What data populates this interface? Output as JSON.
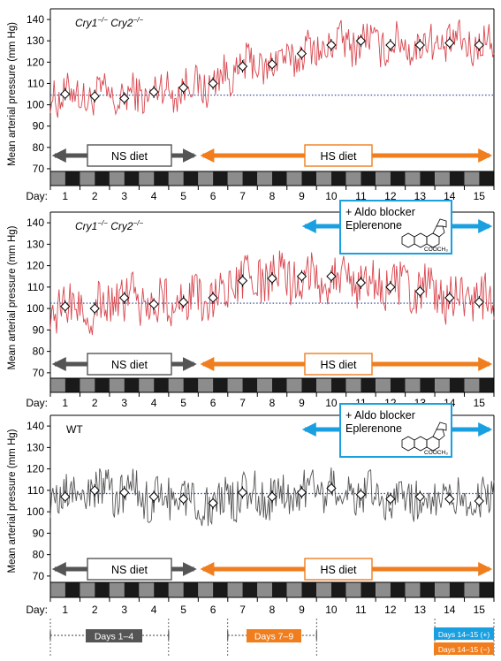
{
  "panels": [
    {
      "genotype_parts": [
        "Cry1",
        "−/−",
        " Cry2",
        "−/−"
      ],
      "ylabel": "Mean arterial pressure (mm Hg)",
      "yticks": [
        70,
        80,
        90,
        100,
        110,
        120,
        130,
        140
      ],
      "day_prefix": "Day:",
      "ns_label": "NS diet",
      "hs_label": "HS diet",
      "drug_box": null,
      "trace_color": "#d9474f"
    },
    {
      "genotype_parts": [
        "Cry1",
        "−/−",
        " Cry2",
        "−/−"
      ],
      "ylabel": "Mean arterial pressure (mm Hg)",
      "yticks": [
        70,
        80,
        90,
        100,
        110,
        120,
        130,
        140
      ],
      "day_prefix": "Day:",
      "ns_label": "NS diet",
      "hs_label": "HS diet",
      "drug_box": {
        "line1": "+ Aldo blocker",
        "line2": "Eplerenone",
        "chem_label": "COOCH₃"
      },
      "trace_color": "#d9474f"
    },
    {
      "genotype_parts": [
        "WT"
      ],
      "ylabel": "Mean arterial pressure (mm Hg)",
      "yticks": [
        70,
        80,
        90,
        100,
        110,
        120,
        130,
        140
      ],
      "day_prefix": "Day:",
      "ns_label": "NS diet",
      "hs_label": "HS diet",
      "drug_box": {
        "line1": "+ Aldo blocker",
        "line2": "Eplerenone",
        "chem_label": "COOCH₃"
      },
      "trace_color": "#555555"
    }
  ],
  "day_labels": [
    "1",
    "2",
    "3",
    "4",
    "5",
    "6",
    "7",
    "8",
    "9",
    "10",
    "11",
    "12",
    "13",
    "14",
    "15"
  ],
  "colors": {
    "hs_arrow": "#f07e1e",
    "ns_arrow": "#555555",
    "drug_arrow": "#1aa0e0",
    "baseline": "#1f3f99",
    "bar_dark": "#1a1a1a",
    "bar_light": "#8c8c8c"
  },
  "bottom_ranges": [
    {
      "label": "Days 1–4",
      "color": "#555555"
    },
    {
      "label": "Days 7–9",
      "color": "#f07e1e"
    },
    {
      "label": "Days 14–15 (+)",
      "color": "#1aa0e0"
    },
    {
      "label": "Days 14–15 (−)",
      "color": "#f07e1e"
    }
  ],
  "chart_data": [
    {
      "type": "line",
      "title": "",
      "ylabel": "Mean arterial pressure (mm Hg)",
      "xlabel": "Day",
      "ylim": [
        65,
        145
      ],
      "xlim": [
        0.5,
        15.5
      ],
      "baseline_y": 104.5,
      "series": [
        {
          "name": "Cry1−/− Cry2−/−",
          "daily_mean": [
            {
              "x": 1,
              "y": 105
            },
            {
              "x": 2,
              "y": 104
            },
            {
              "x": 3,
              "y": 103
            },
            {
              "x": 4,
              "y": 106
            },
            {
              "x": 5,
              "y": 108
            },
            {
              "x": 6,
              "y": 110
            },
            {
              "x": 7,
              "y": 118
            },
            {
              "x": 8,
              "y": 119
            },
            {
              "x": 9,
              "y": 124
            },
            {
              "x": 10,
              "y": 128
            },
            {
              "x": 11,
              "y": 130
            },
            {
              "x": 12,
              "y": 128
            },
            {
              "x": 13,
              "y": 128
            },
            {
              "x": 14,
              "y": 129
            },
            {
              "x": 15,
              "y": 128
            }
          ]
        }
      ]
    },
    {
      "type": "line",
      "title": "",
      "ylabel": "Mean arterial pressure (mm Hg)",
      "xlabel": "Day",
      "ylim": [
        65,
        145
      ],
      "xlim": [
        0.5,
        15.5
      ],
      "baseline_y": 102.5,
      "series": [
        {
          "name": "Cry1−/− Cry2−/−",
          "daily_mean": [
            {
              "x": 1,
              "y": 101
            },
            {
              "x": 2,
              "y": 100
            },
            {
              "x": 3,
              "y": 105
            },
            {
              "x": 4,
              "y": 102
            },
            {
              "x": 5,
              "y": 103
            },
            {
              "x": 6,
              "y": 105
            },
            {
              "x": 7,
              "y": 113
            },
            {
              "x": 8,
              "y": 114
            },
            {
              "x": 9,
              "y": 115
            },
            {
              "x": 10,
              "y": 115
            },
            {
              "x": 11,
              "y": 112
            },
            {
              "x": 12,
              "y": 110
            },
            {
              "x": 13,
              "y": 108
            },
            {
              "x": 14,
              "y": 105
            },
            {
              "x": 15,
              "y": 103
            }
          ]
        }
      ]
    },
    {
      "type": "line",
      "title": "",
      "ylabel": "Mean arterial pressure (mm Hg)",
      "xlabel": "Day",
      "ylim": [
        65,
        145
      ],
      "xlim": [
        0.5,
        15.5
      ],
      "baseline_y": 108.5,
      "series": [
        {
          "name": "WT",
          "daily_mean": [
            {
              "x": 1,
              "y": 107
            },
            {
              "x": 2,
              "y": 110
            },
            {
              "x": 3,
              "y": 109
            },
            {
              "x": 4,
              "y": 107
            },
            {
              "x": 5,
              "y": 106
            },
            {
              "x": 6,
              "y": 104
            },
            {
              "x": 7,
              "y": 109
            },
            {
              "x": 8,
              "y": 107
            },
            {
              "x": 9,
              "y": 109
            },
            {
              "x": 10,
              "y": 111
            },
            {
              "x": 11,
              "y": 108
            },
            {
              "x": 12,
              "y": 106
            },
            {
              "x": 13,
              "y": 107
            },
            {
              "x": 14,
              "y": 106
            },
            {
              "x": 15,
              "y": 105
            }
          ]
        }
      ]
    }
  ]
}
